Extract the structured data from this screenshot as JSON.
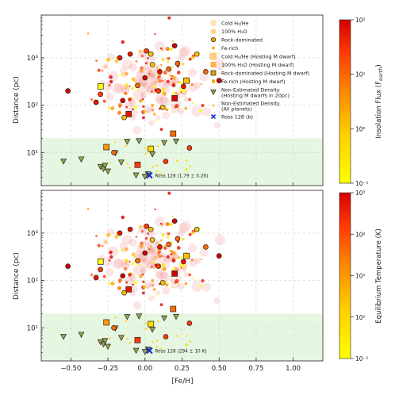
{
  "chart_data": [
    {
      "type": "scatter",
      "panel": "top",
      "title": "",
      "xlabel": "",
      "ylabel": "Distance (pc)",
      "xlim": [
        -0.7,
        1.2
      ],
      "ylim": [
        2,
        8000
      ],
      "yscale": "log",
      "grid": true,
      "shaded_band": {
        "y_from": 2,
        "y_to": 20,
        "color": "#e6f7e1"
      },
      "xticks": [
        "−0.50",
        "−0.25",
        "0.00",
        "0.25",
        "0.50",
        "0.75",
        "1.00"
      ],
      "xtick_values": [
        -0.5,
        -0.25,
        0,
        0.25,
        0.5,
        0.75,
        1.0
      ],
      "yticks": [
        "10¹",
        "10²",
        "10³"
      ],
      "ytick_values": [
        10,
        100,
        1000
      ],
      "colorbar": {
        "label": "Insolation Flux (F",
        "label_sub": "earth",
        "label_end": ")",
        "scale": "log",
        "ticks": [
          "10⁻¹",
          "10⁰",
          "10¹",
          "10²"
        ],
        "tick_values": [
          0.1,
          1,
          10,
          100
        ],
        "colors": [
          "#ffff00",
          "#ffd000",
          "#ff8c00",
          "#ff3a00",
          "#d40000"
        ]
      },
      "legend": {
        "placement": "top-right",
        "entries": [
          {
            "label": "Cold H₂/He",
            "marker": "circle-big",
            "color": "#ffd9a0"
          },
          {
            "label": "100% H₂O",
            "marker": "circle",
            "color": "#ffd27a"
          },
          {
            "label": "Rock-dominated",
            "marker": "circle-edge",
            "color": "#f5a300"
          },
          {
            "label": "Fe-rich",
            "marker": "circle-small",
            "color": "#f5a300"
          },
          {
            "label": "Cold H₂/He (Hosting M dwarf)",
            "marker": "square-big",
            "color": "#ffcc80"
          },
          {
            "label": "100% H₂O (Hosting M dwarf)",
            "marker": "square",
            "color": "#ffb347"
          },
          {
            "label": "Rock-dominated (Hosting M dwarf)",
            "marker": "square-edge",
            "color": "#e6a000"
          },
          {
            "label": "Fe-rich (Hosting M dwarf)",
            "marker": "square-small",
            "color": "#f5a300"
          },
          {
            "label": "Non-Estimated Density",
            "label2": "(Hosting M dwarfs in 20pc)",
            "marker": "triangle",
            "color": "#9aa84a"
          },
          {
            "label": "Non-Estimated Density",
            "label2": "(All planets)",
            "marker": "dot",
            "color": "#ffcc33"
          },
          {
            "label": "Ross 128 (b)",
            "marker": "x",
            "color": "#1a2fd6"
          }
        ]
      },
      "highlight": {
        "name": "Ross 128",
        "x": 0.03,
        "y": 3.3,
        "label": "Ross 128 (1.79 ± 0.26)"
      },
      "series": [
        {
          "kind": "triangle",
          "points": [
            [
              -0.55,
              6.5
            ],
            [
              -0.43,
              7.2
            ],
            [
              -0.3,
              5.0
            ],
            [
              -0.28,
              4.5
            ],
            [
              -0.27,
              5.3
            ],
            [
              -0.25,
              4.0
            ],
            [
              -0.2,
              9.8
            ],
            [
              -0.12,
              17.0
            ],
            [
              -0.04,
              17.5
            ],
            [
              0.02,
              3.5
            ],
            [
              0.05,
              9.2
            ],
            [
              0.13,
              16.0
            ],
            [
              0.21,
              17.2
            ],
            [
              -0.16,
              6.2
            ],
            [
              -0.06,
              3.3
            ],
            [
              0.0,
              3.1
            ]
          ]
        },
        {
          "kind": "square",
          "points": [
            [
              -0.3,
              250
            ],
            [
              -0.26,
              13
            ],
            [
              -0.11,
              65
            ],
            [
              0.04,
              12
            ],
            [
              0.19,
              25
            ],
            [
              0.2,
              140
            ],
            [
              0.28,
              330
            ],
            [
              -0.05,
              5.5
            ]
          ]
        },
        {
          "kind": "circle-edge",
          "points": [
            [
              -0.52,
              200
            ],
            [
              -0.33,
              115
            ],
            [
              -0.3,
              170
            ],
            [
              -0.14,
              55
            ],
            [
              -0.21,
              10
            ],
            [
              -0.15,
              125
            ],
            [
              -0.1,
              1200
            ],
            [
              0.01,
              1400
            ],
            [
              0.04,
              1200
            ],
            [
              -0.05,
              260
            ],
            [
              0.0,
              380
            ],
            [
              0.1,
              510
            ],
            [
              0.09,
              200
            ],
            [
              0.12,
              90
            ],
            [
              0.16,
              580
            ],
            [
              0.2,
              1800
            ],
            [
              0.26,
              250
            ],
            [
              0.3,
              12.5
            ],
            [
              0.35,
              1200
            ],
            [
              0.41,
              510
            ],
            [
              0.5,
              330
            ],
            [
              -0.17,
              1000
            ],
            [
              0.14,
              6.5
            ],
            [
              0.05,
              720
            ],
            [
              0.22,
              760
            ]
          ]
        }
      ]
    },
    {
      "type": "scatter",
      "panel": "bottom",
      "title": "",
      "xlabel": "[Fe/H]",
      "ylabel": "Distance (pc)",
      "xlim": [
        -0.7,
        1.2
      ],
      "ylim": [
        2,
        8000
      ],
      "yscale": "log",
      "grid": true,
      "shaded_band": {
        "y_from": 2,
        "y_to": 20,
        "color": "#e6f7e1"
      },
      "xticks": [
        "−0.50",
        "−0.25",
        "0.00",
        "0.25",
        "0.50",
        "0.75",
        "1.00"
      ],
      "xtick_values": [
        -0.5,
        -0.25,
        0,
        0.25,
        0.5,
        0.75,
        1.0
      ],
      "yticks": [
        "10¹",
        "10²",
        "10³"
      ],
      "ytick_values": [
        10,
        100,
        1000
      ],
      "colorbar": {
        "label": "Equilibrium Temperature (K)",
        "scale": "log",
        "ticks": [
          "10⁻¹",
          "10⁰",
          "10¹",
          "10²",
          "10³"
        ],
        "tick_values": [
          0.1,
          1,
          10,
          100,
          1000
        ],
        "colors": [
          "#ffff00",
          "#ffd000",
          "#ff8c00",
          "#ff3a00",
          "#d40000"
        ]
      },
      "highlight": {
        "name": "Ross 128",
        "x": 0.03,
        "y": 3.3,
        "label": "Ross 128 (294 ± 10 K)"
      },
      "series": [
        {
          "kind": "triangle",
          "points": [
            [
              -0.55,
              6.5
            ],
            [
              -0.43,
              7.2
            ],
            [
              -0.3,
              5.0
            ],
            [
              -0.28,
              4.5
            ],
            [
              -0.27,
              5.3
            ],
            [
              -0.25,
              4.0
            ],
            [
              -0.2,
              9.8
            ],
            [
              -0.12,
              17.0
            ],
            [
              -0.04,
              17.5
            ],
            [
              0.02,
              3.5
            ],
            [
              0.05,
              9.2
            ],
            [
              0.13,
              16.0
            ],
            [
              0.21,
              17.2
            ],
            [
              -0.16,
              6.2
            ],
            [
              -0.06,
              3.3
            ],
            [
              0.0,
              3.1
            ]
          ]
        },
        {
          "kind": "square",
          "points": [
            [
              -0.3,
              250
            ],
            [
              -0.26,
              13
            ],
            [
              -0.11,
              65
            ],
            [
              0.04,
              12
            ],
            [
              0.19,
              25
            ],
            [
              0.2,
              140
            ],
            [
              0.28,
              330
            ],
            [
              -0.05,
              5.5
            ]
          ]
        },
        {
          "kind": "circle-edge",
          "points": [
            [
              -0.52,
              200
            ],
            [
              -0.33,
              115
            ],
            [
              -0.3,
              170
            ],
            [
              -0.14,
              55
            ],
            [
              -0.21,
              10
            ],
            [
              -0.15,
              125
            ],
            [
              -0.1,
              1200
            ],
            [
              0.01,
              1400
            ],
            [
              0.04,
              1200
            ],
            [
              -0.05,
              260
            ],
            [
              0.0,
              380
            ],
            [
              0.1,
              510
            ],
            [
              0.09,
              200
            ],
            [
              0.12,
              90
            ],
            [
              0.16,
              580
            ],
            [
              0.2,
              1800
            ],
            [
              0.26,
              250
            ],
            [
              0.3,
              12.5
            ],
            [
              0.35,
              1200
            ],
            [
              0.41,
              510
            ],
            [
              0.5,
              330
            ],
            [
              -0.17,
              1000
            ],
            [
              0.14,
              6.5
            ],
            [
              0.05,
              720
            ],
            [
              0.22,
              760
            ]
          ]
        }
      ]
    }
  ]
}
